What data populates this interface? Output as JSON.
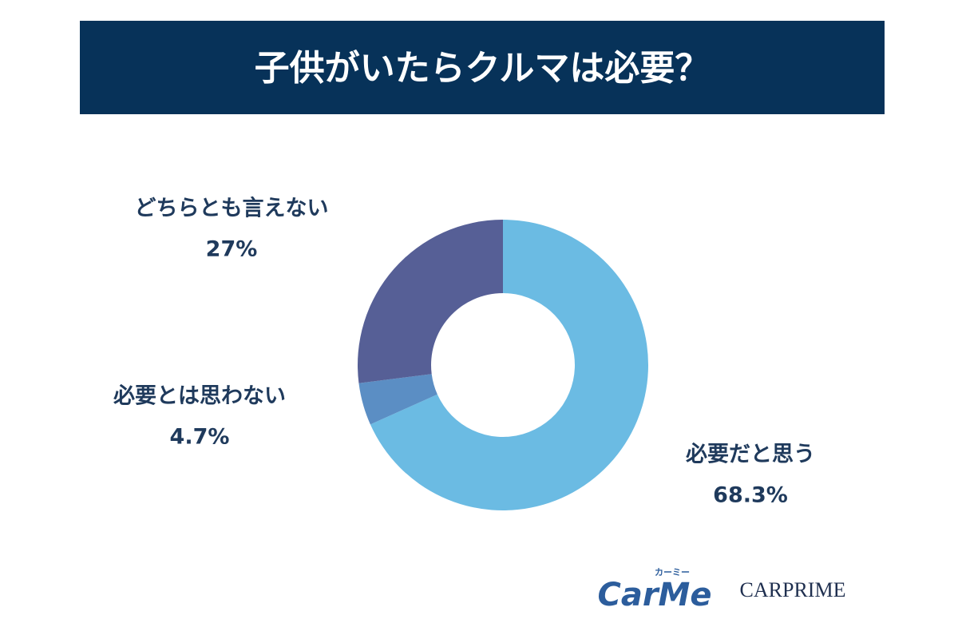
{
  "chart_data": {
    "type": "donut",
    "title": "子供がいたらクルマは必要？",
    "categories": [
      "必要だと思う",
      "必要とは思わない",
      "どちらとも言えない"
    ],
    "values": [
      68.3,
      4.7,
      27
    ],
    "value_labels": [
      "68.3%",
      "4.7%",
      "27%"
    ],
    "colors": [
      "#6bbbe3",
      "#5b8ec4",
      "#565f96"
    ]
  },
  "logos": {
    "carme": "CarMe",
    "carme_kana": "カーミー",
    "carprime": "CARPRIME"
  }
}
